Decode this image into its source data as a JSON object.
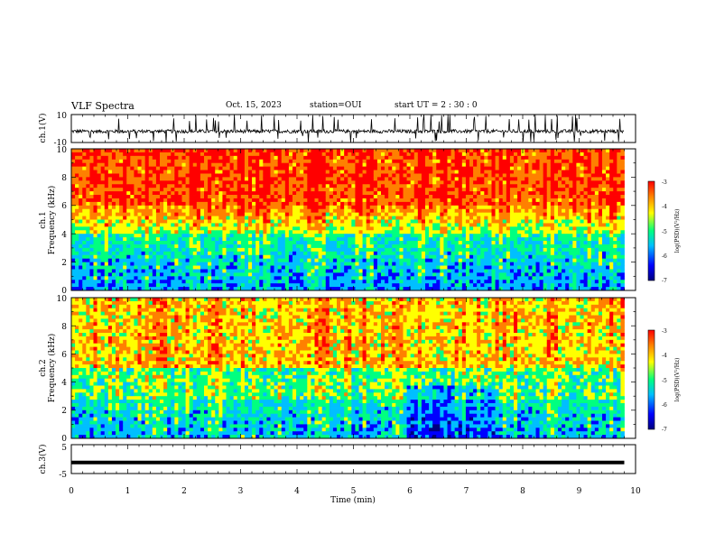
{
  "header": {
    "title": "VLF Spectra",
    "date": "Oct. 15, 2023",
    "station": "station=OUI",
    "start_ut": "start  UT =   2  : 30 : 0"
  },
  "chart_data": [
    {
      "type": "line",
      "panel": "ch1-waveform",
      "ylabel": "ch.1(V)",
      "ylim": [
        -10,
        10
      ],
      "yticks": [
        "10",
        "-10"
      ],
      "xlim": [
        0,
        10
      ],
      "description_values": {
        "baseline": -2,
        "spike_min": -10,
        "spike_max": 10
      }
    },
    {
      "type": "heatmap",
      "panel": "ch1-spectrogram",
      "ylabel": "ch.1\nFrequency  (kHz)",
      "ylabel_lines": [
        "ch.1",
        "Frequency  (kHz)"
      ],
      "ylim": [
        0,
        10
      ],
      "yticks": [
        "0",
        "2",
        "4",
        "6",
        "8",
        "10"
      ],
      "xlim": [
        0,
        10
      ],
      "data_end_min": 9.8,
      "colorbar": {
        "label": "log(PSD)(V²/Hz)",
        "range": [
          -7,
          -3
        ],
        "ticks": [
          "-3",
          "-4",
          "-5",
          "-6",
          "-7"
        ]
      }
    },
    {
      "type": "heatmap",
      "panel": "ch2-spectrogram",
      "ylabel_lines": [
        "ch.2",
        "Frequency  (kHz)"
      ],
      "ylim": [
        0,
        10
      ],
      "yticks": [
        "0",
        "2",
        "4",
        "6",
        "8",
        "10"
      ],
      "xlim": [
        0,
        10
      ],
      "data_end_min": 9.8,
      "colorbar": {
        "label": "log(PSD)(V²/Hz)",
        "range": [
          -7,
          -3
        ],
        "ticks": [
          "-3",
          "-4",
          "-5",
          "-6",
          "-7"
        ]
      }
    },
    {
      "type": "line",
      "panel": "ch3-waveform",
      "ylabel": "ch.3(V)",
      "ylim": [
        -5,
        5
      ],
      "yticks": [
        "5",
        "-5"
      ],
      "xlim": [
        0,
        10
      ],
      "constant_value": -1.2
    }
  ],
  "x_axis": {
    "label": "Time  (min)",
    "ticks": [
      "0",
      "1",
      "2",
      "3",
      "4",
      "5",
      "6",
      "7",
      "8",
      "9",
      "10"
    ]
  },
  "colors": {
    "spectrum": [
      "#00007f",
      "#0000ff",
      "#00bfff",
      "#00ff80",
      "#ffff00",
      "#ff8000",
      "#ff0000"
    ],
    "ink": "#000000"
  }
}
